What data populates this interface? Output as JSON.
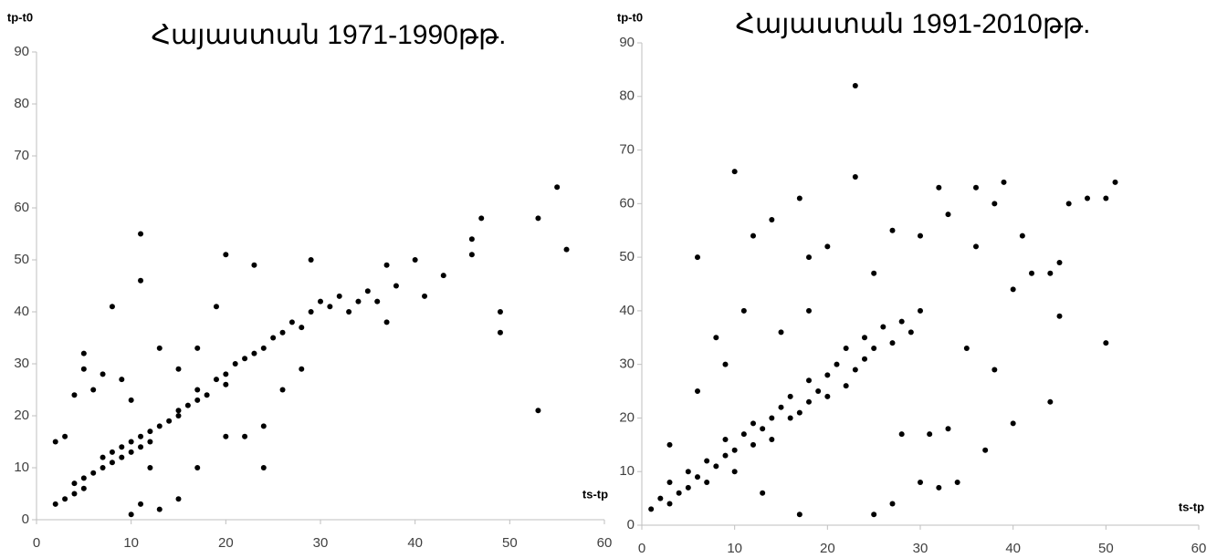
{
  "chart_data": [
    {
      "type": "scatter",
      "title": "Հայաստան 1971-1990թթ.",
      "x_label": "ts-tp",
      "y_label": "tp-t0",
      "color": "#000000",
      "xlim": [
        0,
        60
      ],
      "xticks": [
        0,
        10,
        20,
        30,
        40,
        50,
        60
      ],
      "ylim": [
        0,
        90
      ],
      "yticks": [
        0,
        10,
        20,
        30,
        40,
        50,
        60,
        70,
        80,
        90
      ],
      "x": [
        2,
        3,
        4,
        4,
        5,
        5,
        6,
        7,
        7,
        8,
        8,
        9,
        9,
        10,
        10,
        11,
        11,
        12,
        12,
        13,
        14,
        15,
        15,
        16,
        17,
        17,
        18,
        19,
        20,
        20,
        21,
        22,
        23,
        24,
        25,
        26,
        27,
        28,
        29,
        30,
        31,
        32,
        33,
        34,
        35,
        36,
        2,
        3,
        4,
        5,
        5,
        6,
        7,
        8,
        9,
        10,
        10,
        11,
        11,
        11,
        12,
        13,
        13,
        15,
        15,
        17,
        17,
        19,
        20,
        20,
        22,
        23,
        24,
        24,
        26,
        28,
        29,
        37,
        37,
        38,
        40,
        41,
        43,
        46,
        46,
        47,
        49,
        49,
        53,
        53,
        55,
        56
      ],
      "y": [
        3,
        4,
        5,
        7,
        6,
        8,
        9,
        10,
        12,
        11,
        13,
        14,
        12,
        15,
        13,
        16,
        14,
        17,
        15,
        18,
        19,
        21,
        20,
        22,
        23,
        25,
        24,
        27,
        28,
        26,
        30,
        31,
        32,
        33,
        35,
        36,
        38,
        37,
        40,
        42,
        41,
        43,
        40,
        42,
        44,
        42,
        15,
        16,
        24,
        32,
        29,
        25,
        28,
        41,
        27,
        23,
        1,
        55,
        46,
        3,
        10,
        33,
        2,
        4,
        29,
        10,
        33,
        41,
        51,
        16,
        16,
        49,
        10,
        18,
        25,
        29,
        50,
        49,
        38,
        45,
        50,
        43,
        47,
        51,
        54,
        58,
        40,
        36,
        58,
        21,
        64,
        52
      ]
    },
    {
      "type": "scatter",
      "title": "Հայաստան 1991-2010թթ.",
      "x_label": "ts-tp",
      "y_label": "tp-t0",
      "color": "#000000",
      "xlim": [
        0,
        60
      ],
      "xticks": [
        0,
        10,
        20,
        30,
        40,
        50,
        60
      ],
      "ylim": [
        0,
        90
      ],
      "yticks": [
        0,
        10,
        20,
        30,
        40,
        50,
        60,
        70,
        80,
        90
      ],
      "x": [
        1,
        2,
        3,
        3,
        4,
        5,
        5,
        6,
        7,
        7,
        8,
        9,
        9,
        10,
        10,
        11,
        12,
        12,
        13,
        14,
        14,
        15,
        16,
        16,
        17,
        18,
        18,
        19,
        20,
        20,
        21,
        22,
        22,
        23,
        24,
        24,
        25,
        26,
        27,
        28,
        29,
        30,
        6,
        10,
        12,
        14,
        17,
        18,
        20,
        23,
        23,
        25,
        27,
        30,
        32,
        33,
        36,
        36,
        39,
        38,
        41,
        42,
        44,
        45,
        46,
        48,
        50,
        51,
        50,
        45,
        44,
        40,
        37,
        34,
        32,
        30,
        27,
        25,
        17,
        13,
        8,
        9,
        11,
        15,
        18,
        3,
        6,
        28,
        33,
        38,
        35,
        40,
        31
      ],
      "y": [
        3,
        5,
        4,
        8,
        6,
        10,
        7,
        9,
        12,
        8,
        11,
        13,
        16,
        14,
        10,
        17,
        15,
        19,
        18,
        20,
        16,
        22,
        20,
        24,
        21,
        27,
        23,
        25,
        28,
        24,
        30,
        26,
        33,
        29,
        35,
        31,
        33,
        37,
        34,
        38,
        36,
        40,
        50,
        66,
        54,
        57,
        61,
        50,
        52,
        82,
        65,
        47,
        55,
        54,
        63,
        58,
        63,
        52,
        64,
        60,
        54,
        47,
        47,
        49,
        60,
        61,
        61,
        64,
        34,
        39,
        23,
        19,
        14,
        8,
        7,
        8,
        4,
        2,
        2,
        6,
        35,
        30,
        40,
        36,
        40,
        15,
        25,
        17,
        18,
        29,
        33,
        44,
        17
      ]
    }
  ]
}
